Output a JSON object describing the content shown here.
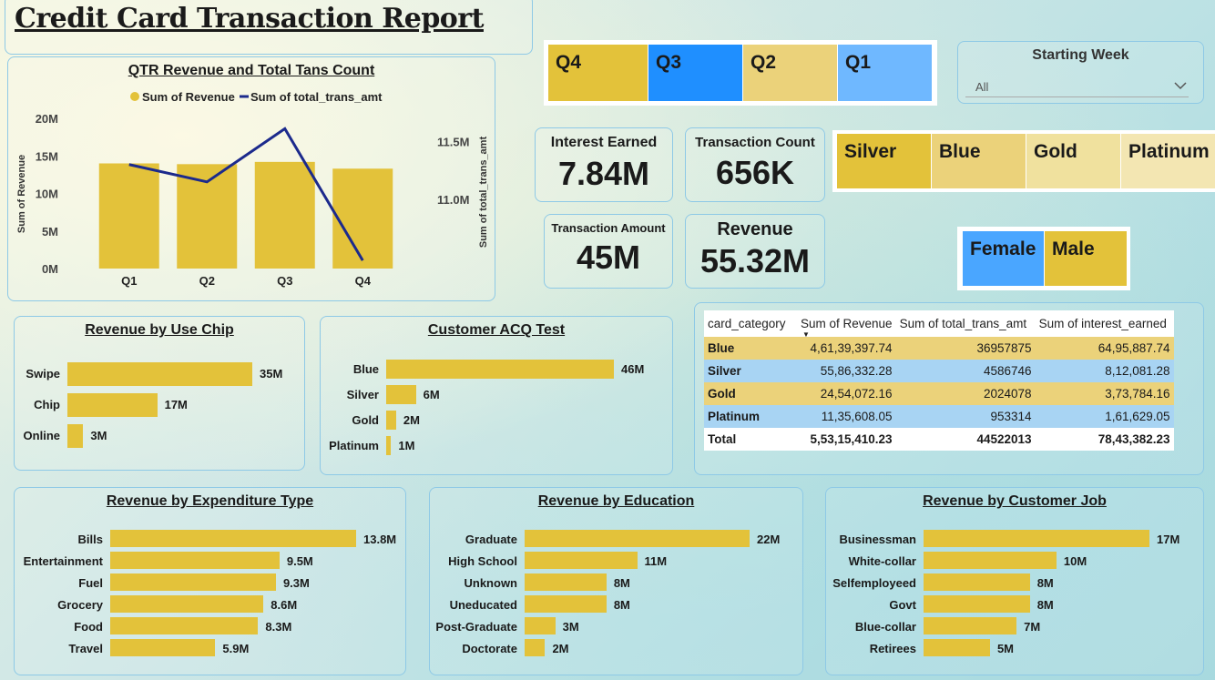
{
  "report_title": "Credit Card Transaction Report",
  "colors": {
    "gold": "#e3c23a",
    "gold_light": "#ebd27a",
    "gold_pale": "#f0e19e",
    "blue": "#1f8fff",
    "blue_light": "#6fb8ff",
    "line": "#1c2a8c"
  },
  "quarter_slicer": {
    "items": [
      "Q4",
      "Q3",
      "Q2",
      "Q1"
    ]
  },
  "week_slicer": {
    "label": "Starting Week",
    "value": "All"
  },
  "category_slicer": {
    "items": [
      "Silver",
      "Blue",
      "Gold",
      "Platinum"
    ]
  },
  "gender_slicer": {
    "items": [
      "Female",
      "Male"
    ]
  },
  "cards": {
    "interest_label": "Interest Earned",
    "interest_value": "7.84M",
    "count_label": "Transaction Count",
    "count_value": "656K",
    "amount_label": "Transaction Amount",
    "amount_value": "45M",
    "revenue_label": "Revenue",
    "revenue_value": "55.32M"
  },
  "qtr_chart": {
    "title": "QTR Revenue and Total Tans Count",
    "legend": [
      "Sum of Revenue",
      "Sum of total_trans_amt"
    ],
    "y_left_label": "Sum of Revenue",
    "y_right_label": "Sum of total_trans_amt",
    "y_left_ticks": [
      "20M",
      "15M",
      "10M",
      "5M",
      "0M"
    ],
    "y_right_ticks": [
      "11.5M",
      "11.0M"
    ]
  },
  "use_chip": {
    "title": "Revenue by Use Chip"
  },
  "acq": {
    "title": "Customer ACQ Test"
  },
  "expenditure": {
    "title": "Revenue by Expenditure Type"
  },
  "education": {
    "title": "Revenue by Education"
  },
  "job": {
    "title": "Revenue by Customer Job"
  },
  "chart_data": [
    {
      "type": "bar",
      "name": "QTR Revenue and Total Tans Count",
      "categories": [
        "Q1",
        "Q2",
        "Q3",
        "Q4"
      ],
      "series": [
        {
          "name": "Sum of Revenue",
          "type": "bar",
          "axis": "left",
          "values": [
            14.0,
            13.9,
            14.2,
            13.3
          ]
        },
        {
          "name": "Sum of total_trans_amt",
          "type": "line",
          "axis": "right",
          "values": [
            11.3,
            11.15,
            11.61,
            10.47
          ]
        }
      ],
      "ylabel": "Sum of Revenue",
      "y2label": "Sum of total_trans_amt",
      "ylim": [
        0,
        20
      ],
      "y2lim": [
        10.4,
        11.7
      ],
      "legend": "top"
    },
    {
      "type": "bar",
      "orientation": "horizontal",
      "name": "Revenue by Use Chip",
      "categories": [
        "Swipe",
        "Chip",
        "Online"
      ],
      "values": [
        35,
        17,
        3
      ],
      "labels": [
        "35M",
        "17M",
        "3M"
      ]
    },
    {
      "type": "bar",
      "orientation": "horizontal",
      "name": "Customer ACQ Test",
      "categories": [
        "Blue",
        "Silver",
        "Gold",
        "Platinum"
      ],
      "values": [
        46,
        6,
        2,
        1
      ],
      "labels": [
        "46M",
        "6M",
        "2M",
        "1M"
      ]
    },
    {
      "type": "bar",
      "orientation": "horizontal",
      "name": "Revenue by Expenditure Type",
      "categories": [
        "Bills",
        "Entertainment",
        "Fuel",
        "Grocery",
        "Food",
        "Travel"
      ],
      "values": [
        13.8,
        9.5,
        9.3,
        8.6,
        8.3,
        5.9
      ],
      "labels": [
        "13.8M",
        "9.5M",
        "9.3M",
        "8.6M",
        "8.3M",
        "5.9M"
      ]
    },
    {
      "type": "bar",
      "orientation": "horizontal",
      "name": "Revenue by Education",
      "categories": [
        "Graduate",
        "High School",
        "Unknown",
        "Uneducated",
        "Post-Graduate",
        "Doctorate"
      ],
      "values": [
        22,
        11,
        8,
        8,
        3,
        2
      ],
      "labels": [
        "22M",
        "11M",
        "8M",
        "8M",
        "3M",
        "2M"
      ]
    },
    {
      "type": "bar",
      "orientation": "horizontal",
      "name": "Revenue by Customer Job",
      "categories": [
        "Businessman",
        "White-collar",
        "Selfemployeed",
        "Govt",
        "Blue-collar",
        "Retirees"
      ],
      "values": [
        17,
        10,
        8,
        8,
        7,
        5
      ],
      "labels": [
        "17M",
        "10M",
        "8M",
        "8M",
        "7M",
        "5M"
      ]
    },
    {
      "type": "table",
      "name": "card_category table",
      "columns": [
        "card_category",
        "Sum of Revenue",
        "Sum of total_trans_amt",
        "Sum of interest_earned"
      ],
      "rows": [
        [
          "Blue",
          "4,61,39,397.74",
          "36957875",
          "64,95,887.74"
        ],
        [
          "Silver",
          "55,86,332.28",
          "4586746",
          "8,12,081.28"
        ],
        [
          "Gold",
          "24,54,072.16",
          "2024078",
          "3,73,784.16"
        ],
        [
          "Platinum",
          "11,35,608.05",
          "953314",
          "1,61,629.05"
        ]
      ],
      "total": [
        "Total",
        "5,53,15,410.23",
        "44522013",
        "78,43,382.23"
      ]
    }
  ]
}
